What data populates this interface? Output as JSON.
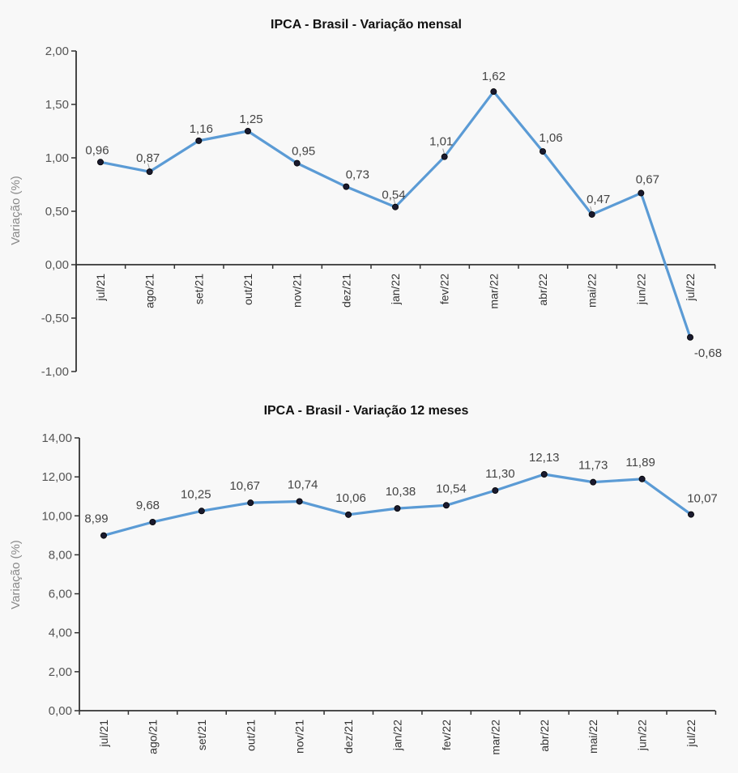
{
  "chart_data": [
    {
      "type": "line",
      "title": "IPCA - Brasil - Variação mensal",
      "xlabel": "",
      "ylabel": "Variação (%)",
      "ylim": [
        -1.0,
        2.0
      ],
      "yticks": [
        2.0,
        1.5,
        1.0,
        0.5,
        0.0,
        -0.5,
        -1.0
      ],
      "ytick_labels": [
        "2,00",
        "1,50",
        "1,00",
        "0,50",
        "0,00",
        "-0,50",
        "-1,00"
      ],
      "grid": false,
      "categories": [
        "jul/21",
        "ago/21",
        "set/21",
        "out/21",
        "nov/21",
        "dez/21",
        "jan/22",
        "fev/22",
        "mar/22",
        "abr/22",
        "mai/22",
        "jun/22",
        "jul/22"
      ],
      "series": [
        {
          "name": "Variação mensal",
          "color": "#5b9bd5",
          "values": [
            0.96,
            0.87,
            1.16,
            1.25,
            0.95,
            0.73,
            0.54,
            1.01,
            1.62,
            1.06,
            0.47,
            0.67,
            -0.68
          ],
          "labels": [
            "0,96",
            "0,87",
            "1,16",
            "1,25",
            "0,95",
            "0,73",
            "0,54",
            "1,01",
            "1,62",
            "1,06",
            "0,47",
            "0,67",
            "-0,68"
          ]
        }
      ]
    },
    {
      "type": "line",
      "title": "IPCA - Brasil - Variação 12 meses",
      "xlabel": "",
      "ylabel": "Variação (%)",
      "ylim": [
        0.0,
        14.0
      ],
      "yticks": [
        14.0,
        12.0,
        10.0,
        8.0,
        6.0,
        4.0,
        2.0,
        0.0
      ],
      "ytick_labels": [
        "14,00",
        "12,00",
        "10,00",
        "8,00",
        "6,00",
        "4,00",
        "2,00",
        "0,00"
      ],
      "grid": false,
      "categories": [
        "jul/21",
        "ago/21",
        "set/21",
        "out/21",
        "nov/21",
        "dez/21",
        "jan/22",
        "fev/22",
        "mar/22",
        "abr/22",
        "mai/22",
        "jun/22",
        "jul/22"
      ],
      "series": [
        {
          "name": "Variação 12 meses",
          "color": "#5b9bd5",
          "values": [
            8.99,
            9.68,
            10.25,
            10.67,
            10.74,
            10.06,
            10.38,
            10.54,
            11.3,
            12.13,
            11.73,
            11.89,
            10.07
          ],
          "labels": [
            "8,99",
            "9,68",
            "10,25",
            "10,67",
            "10,74",
            "10,06",
            "10,38",
            "10,54",
            "11,30",
            "12,13",
            "11,73",
            "11,89",
            "10,07"
          ]
        }
      ]
    }
  ]
}
